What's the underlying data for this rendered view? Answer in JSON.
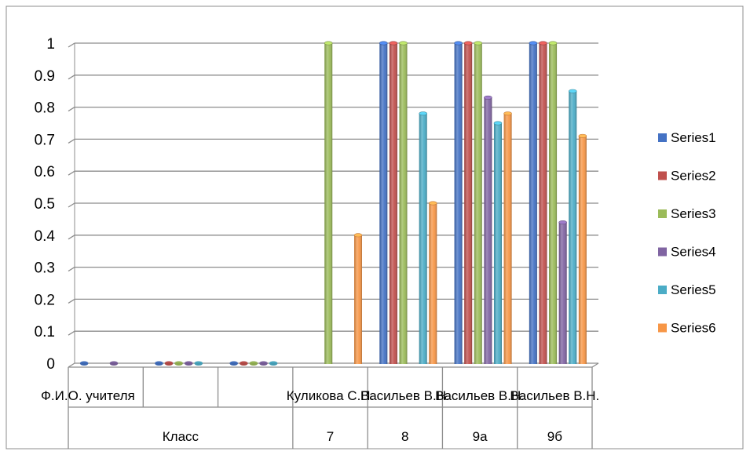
{
  "chart_data": {
    "type": "bar",
    "title": "",
    "xlabel": "",
    "ylabel": "",
    "ylim": [
      0,
      1
    ],
    "y_ticks": [
      "0",
      "0.1",
      "0.2",
      "0.3",
      "0.4",
      "0.5",
      "0.6",
      "0.7",
      "0.8",
      "0.9",
      "1"
    ],
    "grid": true,
    "legend": "right",
    "categories": [
      "Ф.И.О. учителя",
      "",
      "",
      "Куликова С.П.",
      "Васильев В.Н.",
      "Васильев В.Н.",
      "Васильев В.Н."
    ],
    "category_groups": [
      "Класс",
      "7",
      "8",
      "9а",
      "9б"
    ],
    "series": [
      {
        "name": "Series1",
        "color": "#4472C4",
        "values": [
          0,
          0,
          0,
          null,
          1,
          1,
          1
        ]
      },
      {
        "name": "Series2",
        "color": "#C0504D",
        "values": [
          null,
          0,
          0,
          null,
          1,
          1,
          1
        ]
      },
      {
        "name": "Series3",
        "color": "#9BBB59",
        "values": [
          null,
          0,
          0,
          1,
          1,
          1,
          1
        ]
      },
      {
        "name": "Series4",
        "color": "#8064A2",
        "values": [
          0,
          0,
          0,
          null,
          null,
          0.83,
          0.44
        ]
      },
      {
        "name": "Series5",
        "color": "#4BACC6",
        "values": [
          null,
          0,
          0,
          null,
          0.78,
          0.75,
          0.85
        ]
      },
      {
        "name": "Series6",
        "color": "#F79646",
        "values": [
          null,
          null,
          null,
          0.4,
          0.5,
          0.78,
          0.71
        ]
      }
    ]
  }
}
